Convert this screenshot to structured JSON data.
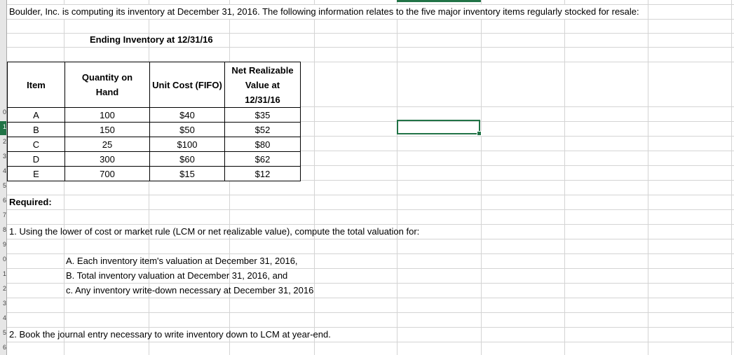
{
  "sheet": {
    "intro": "Boulder, Inc. is computing its inventory at December 31, 2016. The following information relates to the five major inventory items regularly stocked for resale:",
    "table_title": "Ending Inventory at 12/31/16",
    "table": {
      "headers": {
        "item": "Item",
        "qty_line1": "Quantity on",
        "qty_line2": "Hand",
        "cost": "Unit Cost (FIFO)",
        "nrv_line1": "Net Realizable",
        "nrv_line2": "Value at",
        "nrv_line3": "12/31/16"
      },
      "rows": [
        {
          "item": "A",
          "qty": "100",
          "cost": "$40",
          "nrv": "$35"
        },
        {
          "item": "B",
          "qty": "150",
          "cost": "$50",
          "nrv": "$52"
        },
        {
          "item": "C",
          "qty": "25",
          "cost": "$100",
          "nrv": "$80"
        },
        {
          "item": "D",
          "qty": "300",
          "cost": "$60",
          "nrv": "$62"
        },
        {
          "item": "E",
          "qty": "700",
          "cost": "$15",
          "nrv": "$12"
        }
      ]
    },
    "required_label": "Required:",
    "q1": "1. Using the lower of cost or market rule (LCM or net realizable value), compute the total valuation for:",
    "q1_a": "A. Each inventory item's valuation at December 31, 2016,",
    "q1_b": "B. Total inventory valuation at December 31, 2016, and",
    "q1_c": "c. Any inventory write-down necessary at December 31, 2016",
    "q2": "2. Book the journal entry necessary to write inventory down to LCM at year-end."
  },
  "row_numbers": [
    "0",
    "1",
    "2",
    "3",
    "4",
    "5",
    "6",
    "7",
    "8",
    "9",
    "0",
    "1",
    "2",
    "3",
    "4",
    "5",
    "6"
  ],
  "colors": {
    "selection": "#217346",
    "grid": "#d4d4d4"
  }
}
